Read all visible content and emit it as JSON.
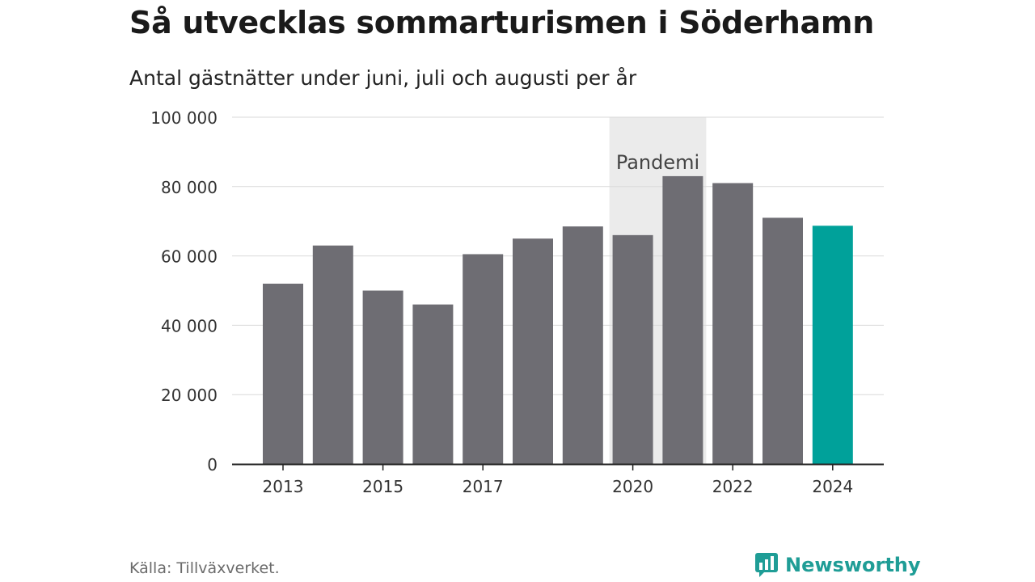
{
  "header": {
    "title": "Så utvecklas sommarturismen i Söderhamn",
    "subtitle": "Antal gästnätter under juni, juli och augusti per år"
  },
  "footer": {
    "source": "Källa: Tillväxverket.",
    "brand_name": "Newsworthy"
  },
  "colors": {
    "bar": "#6e6d73",
    "highlight": "#00a19a",
    "band": "#ebebeb",
    "grid": "#d9d9d9",
    "brand": "#1f9d96"
  },
  "icons": {
    "brand_logo": "newsworthy-logo-icon"
  },
  "chart_data": {
    "type": "bar",
    "title": "Så utvecklas sommarturismen i Söderhamn",
    "subtitle": "Antal gästnätter under juni, juli och augusti per år",
    "categories": [
      "2013",
      "2014",
      "2015",
      "2016",
      "2017",
      "2018",
      "2019",
      "2020",
      "2021",
      "2022",
      "2023",
      "2024"
    ],
    "values": [
      52000,
      63000,
      50000,
      46000,
      60500,
      65000,
      68500,
      66000,
      83000,
      81000,
      71000,
      68700
    ],
    "highlight_category": "2024",
    "x_tick_labels": [
      "2013",
      "2015",
      "2017",
      "2020",
      "2022",
      "2024"
    ],
    "y_ticks": [
      0,
      20000,
      40000,
      60000,
      80000,
      100000
    ],
    "y_tick_labels": [
      "0",
      "20 000",
      "40 000",
      "60 000",
      "80 000",
      "100 000"
    ],
    "ylim": [
      0,
      100000
    ],
    "grid": true,
    "annotations": [
      {
        "type": "band",
        "from": "2020",
        "to": "2021",
        "label": "Pandemi"
      }
    ]
  }
}
